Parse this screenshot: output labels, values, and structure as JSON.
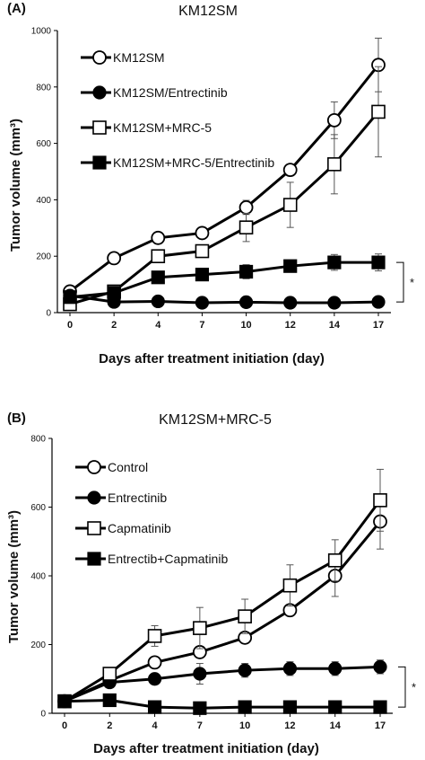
{
  "chart_data": [
    {
      "panel": "(A)",
      "type": "line",
      "title": "KM12SM",
      "xlabel": "Days after treatment initiation (day)",
      "ylabel": "Tumor volume (mm³)",
      "x": [
        0,
        2,
        4,
        7,
        10,
        12,
        14,
        17
      ],
      "ylim": [
        0,
        1000
      ],
      "yticks": [
        0,
        200,
        400,
        600,
        800,
        1000
      ],
      "legend_position": "top-left",
      "significance": "*",
      "series": [
        {
          "name": "KM12SM",
          "marker": "open-circle",
          "values": [
            75,
            193,
            265,
            282,
            373,
            506,
            682,
            878
          ],
          "errors": [
            0,
            0,
            0,
            0,
            25,
            0,
            65,
            95
          ]
        },
        {
          "name": "KM12SM/Entrectinib",
          "marker": "filled-circle",
          "values": [
            60,
            38,
            40,
            35,
            37,
            35,
            35,
            38
          ],
          "errors": [
            0,
            0,
            0,
            0,
            0,
            0,
            0,
            0
          ]
        },
        {
          "name": "KM12SM+MRC-5",
          "marker": "open-square",
          "values": [
            30,
            75,
            200,
            218,
            302,
            382,
            526,
            712
          ],
          "errors": [
            0,
            0,
            0,
            0,
            50,
            80,
            105,
            160
          ]
        },
        {
          "name": "KM12SM+MRC-5/Entrectinib",
          "marker": "filled-square",
          "values": [
            55,
            70,
            125,
            135,
            145,
            165,
            178,
            178
          ],
          "errors": [
            0,
            0,
            0,
            0,
            25,
            20,
            28,
            30
          ]
        }
      ]
    },
    {
      "panel": "(B)",
      "type": "line",
      "title": "KM12SM+MRC-5",
      "xlabel": "Days after treatment initiation (day)",
      "ylabel": "Tumor volume (mm³)",
      "x": [
        0,
        2,
        4,
        7,
        10,
        12,
        14,
        17
      ],
      "ylim": [
        0,
        800
      ],
      "yticks": [
        0,
        200,
        400,
        600,
        800
      ],
      "legend_position": "top-left",
      "significance": "*",
      "series": [
        {
          "name": "Control",
          "marker": "open-circle",
          "values": [
            35,
            95,
            148,
            178,
            220,
            300,
            400,
            558
          ],
          "errors": [
            0,
            0,
            0,
            0,
            0,
            15,
            60,
            80
          ]
        },
        {
          "name": "Entrectinib",
          "marker": "filled-circle",
          "values": [
            35,
            90,
            100,
            115,
            125,
            130,
            130,
            135
          ],
          "errors": [
            0,
            0,
            0,
            30,
            20,
            20,
            20,
            20
          ]
        },
        {
          "name": "Capmatinib",
          "marker": "open-square",
          "values": [
            35,
            115,
            225,
            248,
            282,
            372,
            445,
            620
          ],
          "errors": [
            0,
            0,
            30,
            60,
            50,
            60,
            60,
            90
          ]
        },
        {
          "name": "Entrectib+Capmatinib",
          "marker": "filled-square",
          "values": [
            35,
            38,
            18,
            15,
            18,
            18,
            18,
            18
          ],
          "errors": [
            0,
            0,
            0,
            0,
            0,
            0,
            0,
            0
          ]
        }
      ]
    }
  ]
}
